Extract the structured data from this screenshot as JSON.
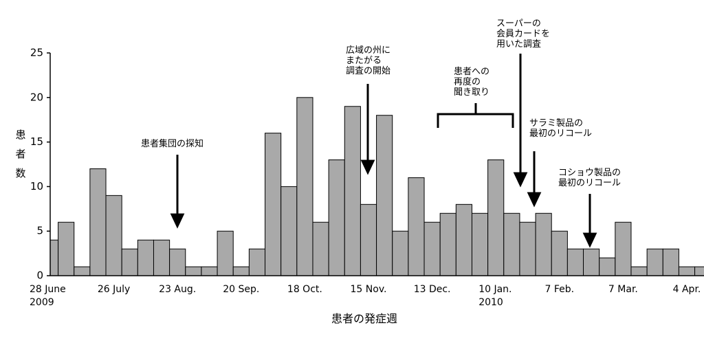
{
  "chart_data": {
    "type": "bar",
    "x_label": "患者の発症週",
    "y_label": "患\n者\n数",
    "categories": [
      "28 June\n2009",
      null,
      null,
      null,
      "26 July",
      null,
      null,
      null,
      "23 Aug.",
      null,
      null,
      null,
      "20 Sep.",
      null,
      null,
      null,
      "18 Oct.",
      null,
      null,
      null,
      "15 Nov.",
      null,
      null,
      null,
      "13 Dec.",
      null,
      null,
      null,
      "10 Jan.\n2010",
      null,
      null,
      null,
      "7 Feb.",
      null,
      null,
      null,
      "7 Mar.",
      null,
      null,
      null,
      "4 Apr.",
      null
    ],
    "values": [
      4,
      6,
      1,
      12,
      9,
      3,
      4,
      4,
      3,
      1,
      1,
      5,
      1,
      3,
      16,
      10,
      20,
      6,
      13,
      19,
      8,
      18,
      5,
      11,
      6,
      7,
      8,
      7,
      13,
      7,
      6,
      7,
      5,
      3,
      3,
      2,
      6,
      1,
      3,
      3,
      1,
      1
    ],
    "color": "#a9a9a9",
    "ylim": [
      0,
      25
    ],
    "yticks": [
      0,
      5,
      10,
      15,
      20,
      25
    ],
    "annotations": [
      {
        "text": "患者集団の探知"
      },
      {
        "text": "広域の州に\nまたがる\n調査の開始"
      },
      {
        "text": "患者への\n再度の\n聞き取り"
      },
      {
        "text": "スーパーの\n会員カードを\n用いた調査"
      },
      {
        "text": "サラミ製品の\n最初のリコール"
      },
      {
        "text": "コショウ製品の\n最初のリコール"
      }
    ]
  }
}
